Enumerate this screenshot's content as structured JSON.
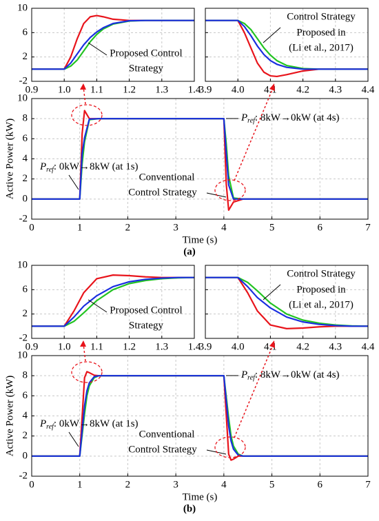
{
  "chart_data": [
    {
      "type": "line",
      "xlim": [
        0.9,
        1.4
      ],
      "ylim": [
        -2,
        10
      ],
      "xticks": [
        0.9,
        {
          "value": 1,
          "label": "1.0"
        },
        1.1,
        1.2,
        1.3,
        1.4
      ],
      "yticks": [
        -2,
        2,
        6,
        10
      ],
      "grid": true,
      "x": [
        0.9,
        1.0,
        1.02,
        1.04,
        1.06,
        1.08,
        1.1,
        1.12,
        1.15,
        1.2,
        1.25,
        1.3,
        1.4
      ],
      "series": [
        {
          "color": "#e8141b",
          "values": [
            0,
            0,
            2,
            5,
            7.5,
            8.6,
            8.8,
            8.6,
            8.2,
            8.0,
            8,
            8,
            8
          ]
        },
        {
          "color": "#22c322",
          "values": [
            0,
            0,
            0.5,
            1.5,
            3,
            4.5,
            5.7,
            6.6,
            7.4,
            7.9,
            8,
            8,
            8
          ]
        },
        {
          "color": "#1a2ee0",
          "values": [
            0,
            0,
            1,
            2.5,
            4,
            5.2,
            6.1,
            6.8,
            7.5,
            7.95,
            8,
            8,
            8
          ]
        }
      ],
      "annotations": [
        "Proposed Control",
        "Strategy"
      ]
    },
    {
      "type": "line",
      "xlim": [
        3.9,
        4.4
      ],
      "ylim": [
        -2,
        10
      ],
      "xticks": [
        3.9,
        {
          "value": 4,
          "label": "4.0"
        },
        4.1,
        4.2,
        4.3,
        4.4
      ],
      "yticks": [
        -2,
        2,
        6,
        10
      ],
      "grid": true,
      "x": [
        3.9,
        4.0,
        4.02,
        4.04,
        4.06,
        4.08,
        4.1,
        4.12,
        4.15,
        4.2,
        4.25,
        4.3,
        4.4
      ],
      "series": [
        {
          "color": "#e8141b",
          "values": [
            8,
            8,
            6,
            3.5,
            1,
            -0.5,
            -1.1,
            -1.2,
            -0.9,
            -0.3,
            0,
            0,
            0
          ]
        },
        {
          "color": "#22c322",
          "values": [
            8,
            8,
            7.5,
            6.5,
            5,
            3.5,
            2.3,
            1.4,
            0.6,
            0.1,
            0,
            0,
            0
          ]
        },
        {
          "color": "#1a2ee0",
          "values": [
            8,
            8,
            7,
            5.5,
            3.8,
            2.4,
            1.4,
            0.8,
            0.3,
            0,
            0,
            0,
            0
          ]
        }
      ],
      "annotations": [
        "Control Strategy",
        "Proposed in",
        "(Li et al., 2017)"
      ]
    },
    {
      "type": "line",
      "xlim": [
        0,
        7
      ],
      "ylim": [
        -2,
        10
      ],
      "xticks": [
        0,
        1,
        2,
        3,
        4,
        5,
        6,
        7
      ],
      "yticks": [
        -2,
        0,
        2,
        4,
        6,
        8,
        10
      ],
      "grid": true,
      "x_label": "Time (s)",
      "y_label": "Active Power (kW)",
      "x": [
        0,
        1,
        1.05,
        1.1,
        1.2,
        1.4,
        4,
        4.05,
        4.1,
        4.2,
        4.4,
        7
      ],
      "series": [
        {
          "color": "#e8141b",
          "values": [
            0,
            0,
            6.5,
            8.8,
            8.0,
            8,
            8,
            1.5,
            -1.1,
            -0.3,
            0,
            0
          ]
        },
        {
          "color": "#22c322",
          "values": [
            0,
            0,
            3.5,
            5.7,
            7.9,
            8,
            8,
            5.5,
            2.3,
            0.1,
            0,
            0
          ]
        },
        {
          "color": "#1a2ee0",
          "values": [
            0,
            0,
            4.5,
            6.1,
            7.95,
            8,
            8,
            4.5,
            1.4,
            0,
            0,
            0
          ]
        }
      ],
      "annotations": [
        "Conventional",
        "Control Strategy"
      ],
      "ref_annotations": [
        {
          "symbol": "P",
          "subscript": "ref",
          "text": ": 8kW→0kW (at 4s)"
        },
        {
          "symbol": "P",
          "subscript": "ref",
          "text": ": 0kW→8kW (at 1s)"
        }
      ],
      "caption": "(a)"
    },
    {
      "type": "line",
      "xlim": [
        0.9,
        1.4
      ],
      "ylim": [
        -2,
        10
      ],
      "xticks": [
        0.9,
        {
          "value": 1,
          "label": "1.0"
        },
        1.1,
        1.2,
        1.3,
        1.4
      ],
      "yticks": [
        -2,
        2,
        6,
        10
      ],
      "grid": true,
      "x": [
        0.9,
        1.0,
        1.03,
        1.06,
        1.1,
        1.15,
        1.2,
        1.25,
        1.3,
        1.35,
        1.4
      ],
      "series": [
        {
          "color": "#e8141b",
          "values": [
            0,
            0,
            2.5,
            5.5,
            7.8,
            8.4,
            8.3,
            8.1,
            8,
            8,
            8
          ]
        },
        {
          "color": "#22c322",
          "values": [
            0,
            0,
            0.8,
            2.2,
            4.2,
            6,
            7,
            7.5,
            7.8,
            7.95,
            8
          ]
        },
        {
          "color": "#1a2ee0",
          "values": [
            0,
            0,
            1.5,
            3.3,
            5,
            6.5,
            7.3,
            7.7,
            7.9,
            8,
            8
          ]
        }
      ],
      "annotations": [
        "Proposed Control",
        "Strategy"
      ]
    },
    {
      "type": "line",
      "xlim": [
        3.9,
        4.4
      ],
      "ylim": [
        -2,
        10
      ],
      "xticks": [
        3.9,
        {
          "value": 4,
          "label": "4.0"
        },
        4.1,
        4.2,
        4.3,
        4.4
      ],
      "yticks": [
        -2,
        2,
        6,
        10
      ],
      "grid": true,
      "x": [
        3.9,
        4.0,
        4.03,
        4.06,
        4.1,
        4.15,
        4.2,
        4.25,
        4.3,
        4.35,
        4.4
      ],
      "series": [
        {
          "color": "#e8141b",
          "values": [
            8,
            8,
            5.5,
            2.5,
            0.2,
            -0.4,
            -0.3,
            -0.1,
            0,
            0,
            0
          ]
        },
        {
          "color": "#22c322",
          "values": [
            8,
            8,
            7.2,
            5.8,
            3.8,
            2,
            1,
            0.5,
            0.2,
            0.05,
            0
          ]
        },
        {
          "color": "#1a2ee0",
          "values": [
            8,
            8,
            6.5,
            4.7,
            3,
            1.5,
            0.7,
            0.3,
            0.1,
            0,
            0
          ]
        }
      ],
      "annotations": [
        "Control Strategy",
        "Proposed in",
        "(Li et al., 2017)"
      ]
    },
    {
      "type": "line",
      "xlim": [
        0,
        7
      ],
      "ylim": [
        -2,
        10
      ],
      "xticks": [
        0,
        1,
        2,
        3,
        4,
        5,
        6,
        7
      ],
      "yticks": [
        -2,
        0,
        2,
        4,
        6,
        8,
        10
      ],
      "grid": true,
      "x_label": "Time (s)",
      "y_label": "Active Power (kW)",
      "x": [
        0,
        1,
        1.1,
        1.15,
        1.2,
        1.3,
        1.4,
        4,
        4.1,
        4.15,
        4.2,
        4.3,
        4.4,
        7
      ],
      "series": [
        {
          "color": "#e8141b",
          "values": [
            0,
            0,
            7.8,
            8.4,
            8.3,
            8.05,
            8,
            8,
            0.2,
            -0.4,
            -0.3,
            0,
            0,
            0
          ]
        },
        {
          "color": "#22c322",
          "values": [
            0,
            0,
            4.2,
            6,
            7,
            7.8,
            8,
            8,
            3.8,
            2,
            1,
            0.2,
            0,
            0
          ]
        },
        {
          "color": "#1a2ee0",
          "values": [
            0,
            0,
            5,
            6.5,
            7.3,
            7.9,
            8,
            8,
            3,
            1.5,
            0.7,
            0.1,
            0,
            0
          ]
        }
      ],
      "annotations": [
        "Conventional",
        "Control Strategy"
      ],
      "ref_annotations": [
        {
          "symbol": "P",
          "subscript": "ref",
          "text": ": 8kW→0kW (at 4s)"
        },
        {
          "symbol": "P",
          "subscript": "ref",
          "text": ": 0kW→8kW (at 1s)"
        }
      ],
      "caption": "(b)"
    }
  ]
}
